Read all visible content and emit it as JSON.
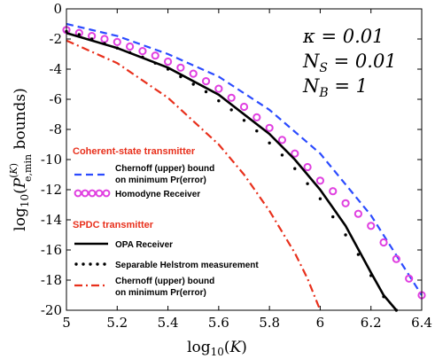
{
  "chart_data": {
    "type": "line",
    "xlabel": "log10(K)",
    "ylabel": "log10(P(K) e,min bounds)",
    "xlim": [
      5,
      6.4
    ],
    "ylim": [
      -20,
      0
    ],
    "x_ticks": [
      "5",
      "5.2",
      "5.4",
      "5.6",
      "5.8",
      "6",
      "6.2",
      "6.4"
    ],
    "y_ticks": [
      "0",
      "-2",
      "-4",
      "-6",
      "-8",
      "-10",
      "-12",
      "-14",
      "-16",
      "-18",
      "-20"
    ],
    "grid": false,
    "annotations": [
      "κ = 0.01",
      "N_S = 0.01",
      "N_B = 1"
    ],
    "legend_groups": [
      "Coherent-state transmitter",
      "SPDC transmitter"
    ],
    "series": [
      {
        "name": "Chernoff (upper) bound on minimum Pr(error)",
        "group": "Coherent-state transmitter",
        "color": "#2b4bff",
        "style": "dashed",
        "x": [
          5,
          5.2,
          5.4,
          5.6,
          5.8,
          6,
          6.2,
          6.4
        ],
        "y": [
          -1.0,
          -1.8,
          -3.0,
          -4.5,
          -6.7,
          -9.6,
          -13.7,
          -19.0
        ]
      },
      {
        "name": "Homodyne Receiver",
        "group": "Coherent-state transmitter",
        "color": "#e040e0",
        "style": "circles",
        "x": [
          5,
          5.05,
          5.1,
          5.15,
          5.2,
          5.25,
          5.3,
          5.35,
          5.4,
          5.45,
          5.5,
          5.55,
          5.6,
          5.65,
          5.7,
          5.75,
          5.8,
          5.85,
          5.9,
          5.95,
          6,
          6.05,
          6.1,
          6.15,
          6.2,
          6.25,
          6.3,
          6.35,
          6.4
        ],
        "y": [
          -1.4,
          -1.6,
          -1.8,
          -2.0,
          -2.2,
          -2.5,
          -2.8,
          -3.1,
          -3.5,
          -3.9,
          -4.3,
          -4.8,
          -5.3,
          -5.9,
          -6.5,
          -7.2,
          -7.9,
          -8.7,
          -9.6,
          -10.5,
          -11.4,
          -12.1,
          -12.9,
          -13.6,
          -14.4,
          -15.5,
          -16.6,
          -17.9,
          -19.0
        ]
      },
      {
        "name": "OPA Receiver",
        "group": "SPDC transmitter",
        "color": "#000000",
        "style": "solid",
        "x": [
          5,
          5.2,
          5.4,
          5.6,
          5.8,
          5.9,
          6,
          6.1,
          6.2,
          6.25,
          6.3
        ],
        "y": [
          -1.6,
          -2.6,
          -3.9,
          -5.7,
          -8.3,
          -10.0,
          -12.0,
          -14.4,
          -17.5,
          -19.0,
          -20.0
        ]
      },
      {
        "name": "Separable Helstrom measurement",
        "group": "SPDC transmitter",
        "color": "#000000",
        "style": "dotted",
        "x": [
          5,
          5.05,
          5.1,
          5.15,
          5.2,
          5.25,
          5.3,
          5.35,
          5.4,
          5.45,
          5.5,
          5.55,
          5.6,
          5.65,
          5.7,
          5.75,
          5.8,
          5.85,
          5.9,
          5.95,
          6,
          6.05,
          6.1,
          6.15,
          6.2,
          6.25,
          6.3
        ],
        "y": [
          -1.5,
          -1.7,
          -2.0,
          -2.3,
          -2.6,
          -2.9,
          -3.2,
          -3.6,
          -4.0,
          -4.5,
          -5.0,
          -5.5,
          -6.1,
          -6.7,
          -7.4,
          -8.1,
          -8.9,
          -9.7,
          -10.6,
          -11.6,
          -12.6,
          -13.8,
          -15.0,
          -16.3,
          -17.7,
          -19.1,
          -20.0
        ]
      },
      {
        "name": "Chernoff (upper) bound on minimum Pr(error)",
        "group": "SPDC transmitter",
        "color": "#e8301c",
        "style": "dashdot",
        "x": [
          5,
          5.2,
          5.4,
          5.6,
          5.7,
          5.8,
          5.9,
          5.95,
          6.0
        ],
        "y": [
          -2.1,
          -3.6,
          -5.9,
          -9.0,
          -11.0,
          -13.4,
          -16.2,
          -17.9,
          -20.0
        ]
      }
    ]
  }
}
